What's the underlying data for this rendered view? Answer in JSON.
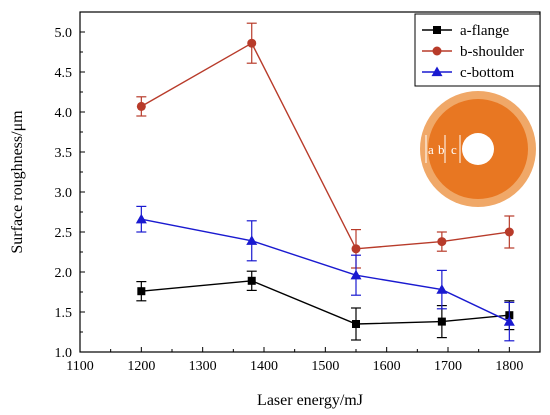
{
  "chart_data": {
    "type": "line",
    "xlabel": "Laser energy/mJ",
    "ylabel": "Surface roughness/μm",
    "xlim": [
      1100,
      1850
    ],
    "ylim": [
      1.0,
      5.25
    ],
    "xticks": [
      "1100",
      "1200",
      "1300",
      "1400",
      "1500",
      "1600",
      "1700",
      "1800"
    ],
    "yticks": [
      "1.0",
      "1.5",
      "2.0",
      "2.5",
      "3.0",
      "3.5",
      "4.0",
      "4.5",
      "5.0"
    ],
    "x": [
      1200,
      1380,
      1550,
      1690,
      1800
    ],
    "grid": false,
    "legend_position": "top-right",
    "series": [
      {
        "name": "a-flange",
        "color": "#000000",
        "marker": "square",
        "values": [
          1.76,
          1.89,
          1.35,
          1.38,
          1.46
        ],
        "errors": [
          0.12,
          0.12,
          0.2,
          0.2,
          0.18
        ]
      },
      {
        "name": "b-shoulder",
        "color": "#b83b2a",
        "marker": "circle",
        "values": [
          4.07,
          4.86,
          2.29,
          2.38,
          2.5
        ],
        "errors": [
          0.12,
          0.25,
          0.24,
          0.12,
          0.2
        ]
      },
      {
        "name": "c-bottom",
        "color": "#1a1ad0",
        "marker": "triangle",
        "values": [
          2.66,
          2.39,
          1.96,
          1.78,
          1.38
        ],
        "errors": [
          0.16,
          0.25,
          0.25,
          0.24,
          0.24
        ]
      }
    ],
    "inset": {
      "labels": [
        "a",
        "b",
        "c"
      ],
      "outer_color": "#f0a868",
      "inner_color": "#e87722",
      "hole_color": "#ffffff"
    }
  }
}
